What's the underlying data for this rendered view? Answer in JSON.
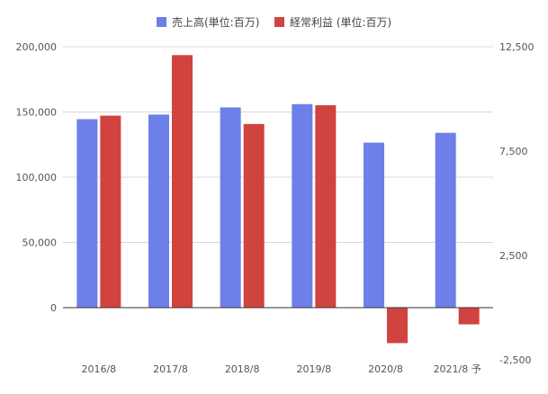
{
  "chart_data": {
    "type": "bar",
    "categories": [
      "2016/8",
      "2017/8",
      "2018/8",
      "2019/8",
      "2020/8",
      "2021/8 予"
    ],
    "series": [
      {
        "name": "売上高(単位:百万)",
        "axis": "left",
        "color": "#6d7fe8",
        "values": [
          144500,
          148000,
          153500,
          156000,
          126500,
          134000
        ]
      },
      {
        "name": "経常利益 (単位:百万)",
        "axis": "right",
        "color": "#d0433f",
        "values": [
          9200,
          12100,
          8800,
          9700,
          -1700,
          -800
        ]
      }
    ],
    "left_axis": {
      "ylim": [
        -40000,
        200000
      ],
      "ticks": [
        0,
        50000,
        100000,
        150000,
        200000
      ],
      "tick_labels": [
        "0",
        "50,000",
        "100,000",
        "150,000",
        "200,000"
      ]
    },
    "right_axis": {
      "ylim": [
        -2500,
        12500
      ],
      "ticks": [
        -2500,
        2500,
        7500,
        12500
      ],
      "tick_labels": [
        "-2,500",
        "2,500",
        "7,500",
        "12,500"
      ]
    },
    "grid": true,
    "legend_position": "top"
  }
}
